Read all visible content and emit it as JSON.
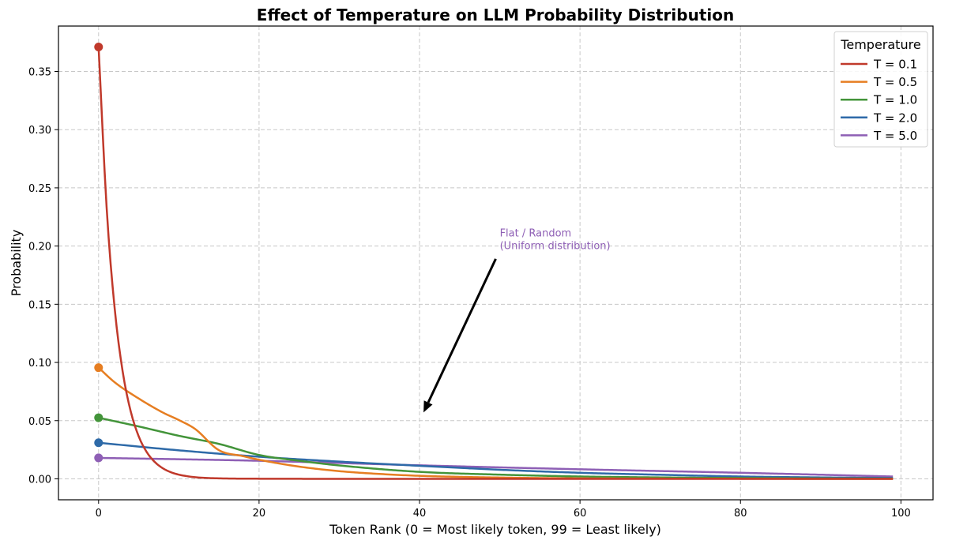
{
  "chart_data": {
    "type": "line",
    "title": "Effect of Temperature on LLM Probability Distribution",
    "xlabel": "Token Rank (0 = Most likely token, 99 = Least likely)",
    "ylabel": "Probability",
    "xlim": [
      -5,
      104
    ],
    "ylim": [
      -0.018,
      0.389
    ],
    "xticks": [
      0,
      20,
      40,
      60,
      80,
      100
    ],
    "xtick_labels": [
      "0",
      "20",
      "40",
      "60",
      "80",
      "100"
    ],
    "yticks": [
      0.0,
      0.05,
      0.1,
      0.15,
      0.2,
      0.25,
      0.3,
      0.35
    ],
    "ytick_labels": [
      "0.00",
      "0.05",
      "0.10",
      "0.15",
      "0.20",
      "0.25",
      "0.30",
      "0.35"
    ],
    "grid": true,
    "grid_style": "dashed",
    "legend": {
      "title": "Temperature",
      "placement": "top-right"
    },
    "series": [
      {
        "name": "T = 0.1",
        "color": "#c0392b",
        "marker_at_first_point": true,
        "x": [
          0,
          1,
          2,
          3,
          4,
          5,
          6,
          7,
          8,
          9,
          10,
          11,
          12,
          13,
          14,
          15,
          17,
          20,
          30,
          40,
          60,
          80,
          99
        ],
        "values": [
          0.371,
          0.2334,
          0.1468,
          0.0923,
          0.0581,
          0.0365,
          0.023,
          0.0145,
          0.0091,
          0.0057,
          0.0036,
          0.0023,
          0.0014,
          0.0009,
          0.0006,
          0.0004,
          0.0002,
          0.0001,
          0.0,
          0.0,
          0.0,
          0.0,
          0.0
        ]
      },
      {
        "name": "T = 0.5",
        "color": "#e67e22",
        "marker_at_first_point": true,
        "x": [
          0,
          2,
          5,
          8,
          10,
          12,
          15,
          18,
          20,
          25,
          30,
          35,
          40,
          45,
          50,
          60,
          70,
          80,
          90,
          99
        ],
        "values": [
          0.0955,
          0.083,
          0.069,
          0.057,
          0.0505,
          0.043,
          0.0246,
          0.0195,
          0.0164,
          0.0105,
          0.0066,
          0.0042,
          0.0026,
          0.0017,
          0.0011,
          0.0004,
          0.0002,
          0.0001,
          0.0,
          0.0
        ]
      },
      {
        "name": "T = 1.0",
        "color": "#43943a",
        "marker_at_first_point": true,
        "x": [
          0,
          5,
          10,
          15,
          20,
          25,
          30,
          40,
          50,
          60,
          70,
          80,
          90,
          99
        ],
        "values": [
          0.0525,
          0.045,
          0.037,
          0.03,
          0.0205,
          0.0155,
          0.0115,
          0.006,
          0.0036,
          0.002,
          0.0012,
          0.0007,
          0.0004,
          0.0002
        ]
      },
      {
        "name": "T = 2.0",
        "color": "#2e6aa8",
        "marker_at_first_point": true,
        "x": [
          0,
          10,
          20,
          30,
          40,
          50,
          60,
          70,
          80,
          90,
          99
        ],
        "values": [
          0.031,
          0.0245,
          0.019,
          0.0148,
          0.0112,
          0.0078,
          0.0052,
          0.0035,
          0.002,
          0.0012,
          0.0007
        ]
      },
      {
        "name": "T = 5.0",
        "color": "#8e5fb5",
        "marker_at_first_point": true,
        "x": [
          0,
          20,
          40,
          60,
          80,
          99
        ],
        "values": [
          0.018,
          0.0155,
          0.0116,
          0.0082,
          0.0052,
          0.002
        ]
      }
    ],
    "annotations": [
      {
        "text_lines": [
          "Flat / Random",
          "(Uniform distribution)"
        ],
        "color": "#8e5fb5",
        "text_xy": [
          50,
          0.2
        ],
        "arrow_from": [
          49.5,
          0.189
        ],
        "arrow_to": [
          40.5,
          0.057
        ],
        "arrow_color": "#000000"
      }
    ]
  }
}
